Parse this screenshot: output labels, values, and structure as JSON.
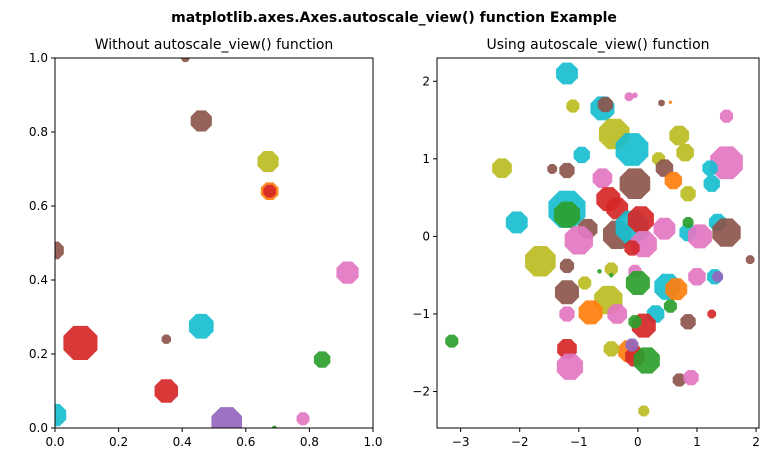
{
  "figure": {
    "suptitle": "matplotlib.axes.Axes.autoscale_view() function Example"
  },
  "chart_data": [
    {
      "type": "scatter",
      "marker": "octagon",
      "title": "Without autoscale_view() function",
      "xlim": [
        0,
        1
      ],
      "ylim": [
        0,
        1
      ],
      "xticks": [
        "0.0",
        "0.2",
        "0.4",
        "0.6",
        "0.8",
        "1.0"
      ],
      "yticks": [
        "0.0",
        "0.2",
        "0.4",
        "0.6",
        "0.8",
        "1.0"
      ],
      "grid": false,
      "points": [
        {
          "x": 0.0,
          "y": 0.48,
          "s": 0.03,
          "color": "#8c564b"
        },
        {
          "x": 0.0,
          "y": 0.035,
          "s": 0.038,
          "color": "#17becf"
        },
        {
          "x": 0.08,
          "y": 0.23,
          "s": 0.058,
          "color": "#d62728"
        },
        {
          "x": 0.35,
          "y": 0.1,
          "s": 0.04,
          "color": "#d62728"
        },
        {
          "x": 0.35,
          "y": 0.24,
          "s": 0.016,
          "color": "#8c564b"
        },
        {
          "x": 0.41,
          "y": 1.0,
          "s": 0.014,
          "color": "#8c564b"
        },
        {
          "x": 0.46,
          "y": 0.83,
          "s": 0.036,
          "color": "#8c564b"
        },
        {
          "x": 0.46,
          "y": 0.275,
          "s": 0.042,
          "color": "#17becf"
        },
        {
          "x": 0.54,
          "y": 0.015,
          "s": 0.052,
          "color": "#9467bd"
        },
        {
          "x": 0.67,
          "y": 0.72,
          "s": 0.036,
          "color": "#bcbd22"
        },
        {
          "x": 0.675,
          "y": 0.64,
          "s": 0.03,
          "color": "#ff7f0e"
        },
        {
          "x": 0.675,
          "y": 0.64,
          "s": 0.022,
          "color": "#d62728"
        },
        {
          "x": 0.69,
          "y": 0.0,
          "s": 0.008,
          "color": "#2ca02c"
        },
        {
          "x": 0.78,
          "y": 0.025,
          "s": 0.022,
          "color": "#e377c2"
        },
        {
          "x": 0.84,
          "y": 0.185,
          "s": 0.028,
          "color": "#2ca02c"
        },
        {
          "x": 0.92,
          "y": 0.42,
          "s": 0.038,
          "color": "#e377c2"
        }
      ]
    },
    {
      "type": "scatter",
      "marker": "octagon",
      "title": "Using autoscale_view() function",
      "xlim": [
        -3.4,
        2.05
      ],
      "ylim": [
        -2.47,
        2.3
      ],
      "xticks": [
        "−3",
        "−2",
        "−1",
        "0",
        "1",
        "2"
      ],
      "xtick_values": [
        -3,
        -2,
        -1,
        0,
        1,
        2
      ],
      "yticks": [
        "−2",
        "−1",
        "0",
        "1",
        "2"
      ],
      "ytick_values": [
        -2,
        -1,
        0,
        1,
        2
      ],
      "grid": false,
      "points": [
        {
          "x": -1.2,
          "y": 2.1,
          "s": 0.2,
          "color": "#17becf"
        },
        {
          "x": -0.6,
          "y": 1.65,
          "s": 0.22,
          "color": "#17becf"
        },
        {
          "x": -0.55,
          "y": 1.7,
          "s": 0.14,
          "color": "#8c564b"
        },
        {
          "x": -0.15,
          "y": 1.8,
          "s": 0.08,
          "color": "#e377c2"
        },
        {
          "x": 0.4,
          "y": 1.72,
          "s": 0.06,
          "color": "#8c564b"
        },
        {
          "x": -1.1,
          "y": 1.68,
          "s": 0.12,
          "color": "#bcbd22"
        },
        {
          "x": 1.5,
          "y": 1.55,
          "s": 0.12,
          "color": "#e377c2"
        },
        {
          "x": 0.55,
          "y": 1.73,
          "s": 0.03,
          "color": "#ff7f0e"
        },
        {
          "x": -0.4,
          "y": 1.32,
          "s": 0.28,
          "color": "#bcbd22"
        },
        {
          "x": -0.1,
          "y": 1.12,
          "s": 0.3,
          "color": "#17becf"
        },
        {
          "x": 0.7,
          "y": 1.3,
          "s": 0.18,
          "color": "#bcbd22"
        },
        {
          "x": 0.8,
          "y": 1.08,
          "s": 0.16,
          "color": "#bcbd22"
        },
        {
          "x": 1.5,
          "y": 0.95,
          "s": 0.3,
          "color": "#e377c2"
        },
        {
          "x": -0.95,
          "y": 1.05,
          "s": 0.15,
          "color": "#17becf"
        },
        {
          "x": -2.3,
          "y": 0.88,
          "s": 0.18,
          "color": "#bcbd22"
        },
        {
          "x": -1.45,
          "y": 0.87,
          "s": 0.09,
          "color": "#8c564b"
        },
        {
          "x": -1.2,
          "y": 0.85,
          "s": 0.14,
          "color": "#8c564b"
        },
        {
          "x": -0.6,
          "y": 0.75,
          "s": 0.18,
          "color": "#e377c2"
        },
        {
          "x": 0.35,
          "y": 1.0,
          "s": 0.12,
          "color": "#bcbd22"
        },
        {
          "x": 0.45,
          "y": 0.88,
          "s": 0.16,
          "color": "#8c564b"
        },
        {
          "x": 0.6,
          "y": 0.72,
          "s": 0.16,
          "color": "#ff7f0e"
        },
        {
          "x": 1.22,
          "y": 0.88,
          "s": 0.14,
          "color": "#17becf"
        },
        {
          "x": 1.25,
          "y": 0.68,
          "s": 0.15,
          "color": "#17becf"
        },
        {
          "x": 0.85,
          "y": 0.55,
          "s": 0.14,
          "color": "#bcbd22"
        },
        {
          "x": -0.05,
          "y": 0.68,
          "s": 0.28,
          "color": "#8c564b"
        },
        {
          "x": -0.5,
          "y": 0.48,
          "s": 0.22,
          "color": "#d62728"
        },
        {
          "x": -0.35,
          "y": 0.36,
          "s": 0.2,
          "color": "#d62728"
        },
        {
          "x": -1.2,
          "y": 0.35,
          "s": 0.34,
          "color": "#17becf"
        },
        {
          "x": -2.05,
          "y": 0.18,
          "s": 0.2,
          "color": "#17becf"
        },
        {
          "x": -1.2,
          "y": 0.28,
          "s": 0.24,
          "color": "#2ca02c"
        },
        {
          "x": -0.85,
          "y": 0.1,
          "s": 0.18,
          "color": "#8c564b"
        },
        {
          "x": -1.0,
          "y": -0.05,
          "s": 0.26,
          "color": "#e377c2"
        },
        {
          "x": -0.35,
          "y": 0.02,
          "s": 0.26,
          "color": "#8c564b"
        },
        {
          "x": -0.1,
          "y": 0.12,
          "s": 0.3,
          "color": "#17becf"
        },
        {
          "x": 0.05,
          "y": 0.22,
          "s": 0.24,
          "color": "#d62728"
        },
        {
          "x": 0.45,
          "y": 0.1,
          "s": 0.2,
          "color": "#e377c2"
        },
        {
          "x": 0.85,
          "y": 0.05,
          "s": 0.16,
          "color": "#17becf"
        },
        {
          "x": 0.85,
          "y": 0.18,
          "s": 0.1,
          "color": "#2ca02c"
        },
        {
          "x": 1.05,
          "y": 0.0,
          "s": 0.22,
          "color": "#e377c2"
        },
        {
          "x": 1.35,
          "y": 0.18,
          "s": 0.16,
          "color": "#17becf"
        },
        {
          "x": 1.5,
          "y": 0.05,
          "s": 0.26,
          "color": "#8c564b"
        },
        {
          "x": 0.1,
          "y": -0.1,
          "s": 0.24,
          "color": "#e377c2"
        },
        {
          "x": -0.1,
          "y": -0.15,
          "s": 0.14,
          "color": "#d62728"
        },
        {
          "x": -1.65,
          "y": -0.32,
          "s": 0.28,
          "color": "#bcbd22"
        },
        {
          "x": -1.2,
          "y": -0.38,
          "s": 0.13,
          "color": "#8c564b"
        },
        {
          "x": -0.45,
          "y": -0.42,
          "s": 0.12,
          "color": "#bcbd22"
        },
        {
          "x": -0.05,
          "y": -0.45,
          "s": 0.12,
          "color": "#e377c2"
        },
        {
          "x": -0.45,
          "y": -0.5,
          "s": 0.04,
          "color": "#2ca02c"
        },
        {
          "x": 1.9,
          "y": -0.3,
          "s": 0.08,
          "color": "#8c564b"
        },
        {
          "x": 1.3,
          "y": -0.52,
          "s": 0.14,
          "color": "#17becf"
        },
        {
          "x": 1.0,
          "y": -0.52,
          "s": 0.16,
          "color": "#e377c2"
        },
        {
          "x": 1.35,
          "y": -0.52,
          "s": 0.1,
          "color": "#9467bd"
        },
        {
          "x": 0.0,
          "y": -0.6,
          "s": 0.22,
          "color": "#2ca02c"
        },
        {
          "x": 0.5,
          "y": -0.65,
          "s": 0.24,
          "color": "#17becf"
        },
        {
          "x": 0.65,
          "y": -0.68,
          "s": 0.2,
          "color": "#ff7f0e"
        },
        {
          "x": -0.5,
          "y": -0.82,
          "s": 0.26,
          "color": "#bcbd22"
        },
        {
          "x": -1.2,
          "y": -0.72,
          "s": 0.22,
          "color": "#8c564b"
        },
        {
          "x": -0.9,
          "y": -0.6,
          "s": 0.12,
          "color": "#bcbd22"
        },
        {
          "x": -1.2,
          "y": -1.0,
          "s": 0.14,
          "color": "#e377c2"
        },
        {
          "x": -0.8,
          "y": -0.98,
          "s": 0.22,
          "color": "#ff7f0e"
        },
        {
          "x": -0.35,
          "y": -1.0,
          "s": 0.18,
          "color": "#e377c2"
        },
        {
          "x": 0.3,
          "y": -1.0,
          "s": 0.16,
          "color": "#17becf"
        },
        {
          "x": 0.55,
          "y": -0.9,
          "s": 0.12,
          "color": "#2ca02c"
        },
        {
          "x": 0.85,
          "y": -1.1,
          "s": 0.14,
          "color": "#8c564b"
        },
        {
          "x": 1.25,
          "y": -1.0,
          "s": 0.08,
          "color": "#d62728"
        },
        {
          "x": 0.1,
          "y": -1.15,
          "s": 0.22,
          "color": "#d62728"
        },
        {
          "x": -0.05,
          "y": -1.1,
          "s": 0.12,
          "color": "#2ca02c"
        },
        {
          "x": -0.15,
          "y": -1.48,
          "s": 0.2,
          "color": "#ff7f0e"
        },
        {
          "x": -0.05,
          "y": -1.55,
          "s": 0.18,
          "color": "#d62728"
        },
        {
          "x": 0.15,
          "y": -1.6,
          "s": 0.24,
          "color": "#2ca02c"
        },
        {
          "x": -0.45,
          "y": -1.45,
          "s": 0.14,
          "color": "#bcbd22"
        },
        {
          "x": -1.2,
          "y": -1.45,
          "s": 0.18,
          "color": "#d62728"
        },
        {
          "x": -1.15,
          "y": -1.68,
          "s": 0.24,
          "color": "#e377c2"
        },
        {
          "x": -0.1,
          "y": -1.4,
          "s": 0.12,
          "color": "#9467bd"
        },
        {
          "x": 0.7,
          "y": -1.85,
          "s": 0.12,
          "color": "#8c564b"
        },
        {
          "x": 0.9,
          "y": -1.82,
          "s": 0.14,
          "color": "#e377c2"
        },
        {
          "x": 0.1,
          "y": -2.25,
          "s": 0.1,
          "color": "#bcbd22"
        },
        {
          "x": -3.15,
          "y": -1.35,
          "s": 0.12,
          "color": "#2ca02c"
        },
        {
          "x": -0.65,
          "y": -0.45,
          "s": 0.04,
          "color": "#2ca02c"
        },
        {
          "x": -0.05,
          "y": 1.82,
          "s": 0.05,
          "color": "#e377c2"
        }
      ]
    }
  ]
}
